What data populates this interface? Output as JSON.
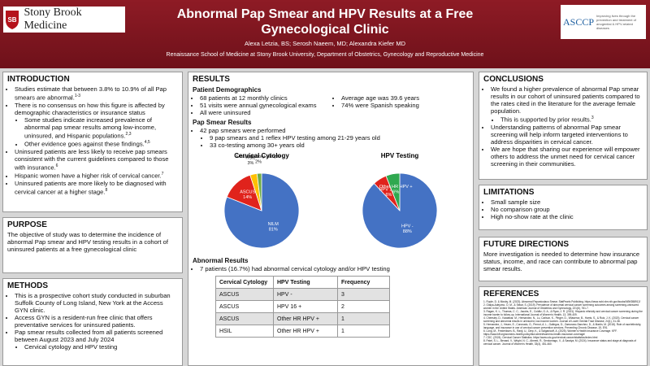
{
  "header": {
    "title": "Abnormal Pap Smear and HPV Results at a Free Gynecological Clinic",
    "authors": "Alexa Letzia, BS; Serosh Naeem, MD; Alexandra Kiefer MD",
    "affiliation": "Renaissance School of Medicine at Stony Brook University, Department of Obstetrics, Gynecology and Reproductive Medicine",
    "logo_left": "Stony Brook Medicine",
    "logo_right": "ASCCP",
    "logo_right_tagline": "Improving lives through the prevention and treatment of anogenital & HPV-related diseases"
  },
  "introduction": {
    "title": "INTRODUCTION",
    "items": [
      {
        "text": "Studies estimate that between 3.8% to 10.9% of all Pap smears are abnormal.",
        "ref": "1-3"
      },
      {
        "text": "There is no consensus on how this figure is affected by demographic characteristics or insurance status",
        "subitems": [
          {
            "text": "Some studies indicate increased prevalence of abnormal pap smear results among low-income, uninsured, and Hispanic populations.",
            "ref": "2,3"
          },
          {
            "text": "Other evidence goes against these findings.",
            "ref": "4,5"
          }
        ]
      },
      {
        "text": "Uninsured patients are less likely to receive pap smears consistent with the current guidelines compared to those with insurance.",
        "ref": "6"
      },
      {
        "text": "Hispanic women have a higher risk of cervical cancer.",
        "ref": "7"
      },
      {
        "text": "Uninsured patients are more likely to be diagnosed with cervical cancer at a higher stage.",
        "ref": "8"
      }
    ]
  },
  "purpose": {
    "title": "PURPOSE",
    "text": "The objective of study was to determine the incidence of abnormal Pap smear and HPV testing results in a cohort of uninsured patients at a free gynecological clinic"
  },
  "methods": {
    "title": "METHODS",
    "items": [
      {
        "text": "This is a prospective cohort study conducted in suburban Suffolk County of Long Island, New York at the Access GYN clinic."
      },
      {
        "text": "Access GYN is a resident-run free clinic that offers preventative services for uninsured patients."
      },
      {
        "text": "Pap smear results collected from all patients screened between August 2023 and July 2024",
        "subitems": [
          {
            "text": "Cervical cytology and HPV testing"
          }
        ]
      }
    ]
  },
  "results": {
    "title": "RESULTS",
    "demographics": {
      "title": "Patient Demographics",
      "left": [
        {
          "text": "68 patients at 12 monthly clinics"
        },
        {
          "text": "51 visits were annual gynecological exams"
        },
        {
          "text": "All were uninsured"
        }
      ],
      "right": [
        {
          "text": "Average age was 39.6 years"
        },
        {
          "text": "74% were Spanish speaking"
        }
      ]
    },
    "pap": {
      "title": "Pap Smear Results",
      "items": [
        {
          "text": "42 pap smears were performed",
          "subitems": [
            {
              "text": "9 pap smears and 1 reflex HPV testing among 21-29 years old"
            },
            {
              "text": "33 co-testing among 30+ years old"
            }
          ]
        }
      ]
    },
    "abnormal": {
      "title": "Abnormal Results",
      "items": [
        {
          "text": "7 patients (16.7%) had abnormal cervical cytology and/or HPV testing"
        }
      ]
    },
    "table": {
      "headers": [
        "Cervical Cytology",
        "HPV Testing",
        "Frequency"
      ],
      "rows": [
        [
          "ASCUS",
          "HPV -",
          3
        ],
        [
          "ASCUS",
          "HPV 16 +",
          2
        ],
        [
          "ASCUS",
          "Other HR HPV +",
          1
        ],
        [
          "HSIL",
          "Other HR HPV +",
          1
        ]
      ]
    }
  },
  "chart_data": [
    {
      "type": "pie",
      "title": "Cervical Cytology",
      "categories": [
        "NILM",
        "ASCUS",
        "HSIL",
        "Unsatisfactory sample"
      ],
      "values": [
        81,
        14,
        3,
        2
      ],
      "value_labels": [
        "81%",
        "14%",
        "3%",
        "2%"
      ],
      "colors": [
        "#4472c4",
        "#e0231c",
        "#ffc000",
        "#70ad47"
      ]
    },
    {
      "type": "pie",
      "title": "HPV Testing",
      "categories": [
        "HPV -",
        "HPV 16 +",
        "Other HR HPV +"
      ],
      "values": [
        88,
        6,
        6
      ],
      "value_labels": [
        "88%",
        "6%",
        "6%"
      ],
      "colors": [
        "#4472c4",
        "#e0231c",
        "#2fa84f"
      ]
    }
  ],
  "conclusions": {
    "title": "CONCLUSIONS",
    "items": [
      {
        "text": "We found a higher prevalence of abnormal Pap smear results in our cohort of uninsured patients compared to the rates cited in the literature for the average female population.",
        "subitems": [
          {
            "text": "This is supported by prior results.",
            "ref": "3"
          }
        ]
      },
      {
        "text": "Understanding patterns of abnormal Pap smear screening will help inform targeted interventions to address disparities in cervical cancer."
      },
      {
        "text": "We are hope that sharing our experience will empower others to address the unmet need for cervical cancer screening in their communities."
      }
    ]
  },
  "limitations": {
    "title": "LIMITATIONS",
    "items": [
      {
        "text": "Small sample size"
      },
      {
        "text": "No comparison group"
      },
      {
        "text": "High no-show rate at the clinic"
      }
    ]
  },
  "future": {
    "title": "FUTURE DIRECTIONS",
    "text": "More investigation is needed to determine how insurance status, income, and race can contribute to abnormal pap smear results."
  },
  "references": {
    "title": "REFERENCES",
    "items": [
      "1. Ruple, D. & Mosby, M. (2023). Abnormal Papanicolaou Smear. StatPearls Publishing. https://www.ncbi.nlm.nih.gov/books/NBK558912/",
      "2. Olaiya-Adejumo, O. M., & Sekar, S. (2019). Prevalence of abnormal cervical cancer screening outcomes among screening-uninsured women in the United States. American Journal of Obstetrics and Gynecology, 221(6), 761-7.",
      "3. Ragan, K. L., Thomas, C. C., Jacobs, E., Colditz, G. A., & Ryan, J. R. (2021). Hispanic ethnicity and cervical cancer screening during the income barrier to follow-up. International Journal of Women's Health, 13, 399-409.",
      "4. Cheesley, D., Kawatkar, M., Hernandez, N., Lu, Carlson, K., Pinger, D., Villasenor, B., Harris, S., & Ruiz, J. K. (2020). Cervical cancer screening and abnormal results in uninsured, low-income women. Journal of Lower Genital Tract Disease, 24(1), 31-38.",
      "5. Hernandez, J., Hearn, E., Coronado, G., Pernot, A. L., Gallegos, D., Zamorano-Sanchez, D., & Martin, M. (2018). Role of race/ethnicity, language, and insurance in use of cervical cancer prevention services. Preventing Chronic Disease, 15, E91.",
      "6. Long, M., Frederiksen, B., Ranji, U., Diep, K., & Salganicoff, A. (2025). Women's Health Insurance Coverage. KFF. https://www.kff.org/womens-health-policy/fact-sheet/womens-health-insurance-coverage/",
      "7. CDC. (2024). Cervical Cancer Statistics. https://www.cdc.gov/cervical-cancer/statistics/index.html",
      "8. Patel, S. L., Benard, V., Wright, N. C., Ahmed, R., Senkomago, V., & Saraiya, M. (2024). Insurance status and stage at diagnosis of cervical cancer. Journal of Women's Health, 33(4), 451-460."
    ]
  }
}
